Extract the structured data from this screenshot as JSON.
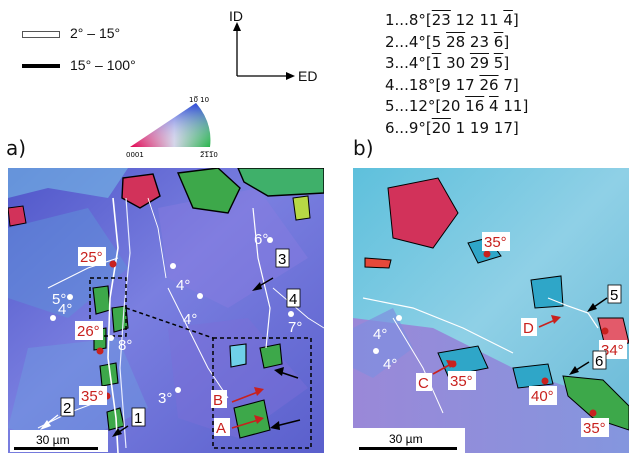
{
  "legend": {
    "low_angle": "2° – 15°",
    "high_angle": "15° – 100°"
  },
  "axes": {
    "vertical": "ID",
    "horizontal": "ED"
  },
  "ipf_key": {
    "top": "10̅ 10",
    "left": "0001",
    "right": "2̅1̅1̅0"
  },
  "orientations": [
    {
      "prefix": "1...8°[",
      "parts": [
        [
          "23",
          true
        ],
        [
          " 12 11 ",
          false
        ],
        [
          "4",
          true
        ]
      ],
      "suffix": "]"
    },
    {
      "prefix": "2...4°[5 ",
      "parts": [
        [
          "28",
          true
        ],
        [
          " 23 ",
          false
        ],
        [
          "6",
          true
        ]
      ],
      "suffix": "]"
    },
    {
      "prefix": "3...4°[",
      "parts": [
        [
          "1",
          true
        ],
        [
          " 30 ",
          false
        ],
        [
          "29",
          true
        ],
        [
          " ",
          false
        ],
        [
          "5",
          true
        ]
      ],
      "suffix": "]"
    },
    {
      "prefix": "4...18°[9 17 ",
      "parts": [
        [
          "26",
          true
        ],
        [
          " 7",
          false
        ]
      ],
      "suffix": "]"
    },
    {
      "prefix": "5...12°[20 ",
      "parts": [
        [
          "16",
          true
        ],
        [
          " ",
          false
        ],
        [
          "4",
          true
        ],
        [
          " 11",
          false
        ]
      ],
      "suffix": "]"
    },
    {
      "prefix": "6...9°[",
      "parts": [
        [
          "20",
          true
        ],
        [
          " 1 19 17",
          false
        ]
      ],
      "suffix": "]"
    }
  ],
  "panel_a": {
    "label": "a)",
    "angles_red": [
      "25°",
      "26°",
      "35°"
    ],
    "angles_white": [
      "5°",
      "4°",
      "8°",
      "4°",
      "4°",
      "6°",
      "3°",
      "7°"
    ],
    "tags": [
      "1",
      "2",
      "3",
      "4"
    ],
    "letters": [
      "B",
      "A"
    ],
    "scale": "30 µm"
  },
  "panel_b": {
    "label": "b)",
    "angles_red": [
      "35°",
      "34°",
      "35°",
      "40°",
      "35°"
    ],
    "angles_white": [
      "4°",
      "4°"
    ],
    "tags": [
      "5",
      "6"
    ],
    "letters": [
      "D",
      "C"
    ],
    "scale": "30 µm"
  },
  "colors": {
    "annotation_red": "#c8211e",
    "matrix_blue": "#6a70d4",
    "grain_green": "#3da84a",
    "grain_red": "#d2325a"
  }
}
